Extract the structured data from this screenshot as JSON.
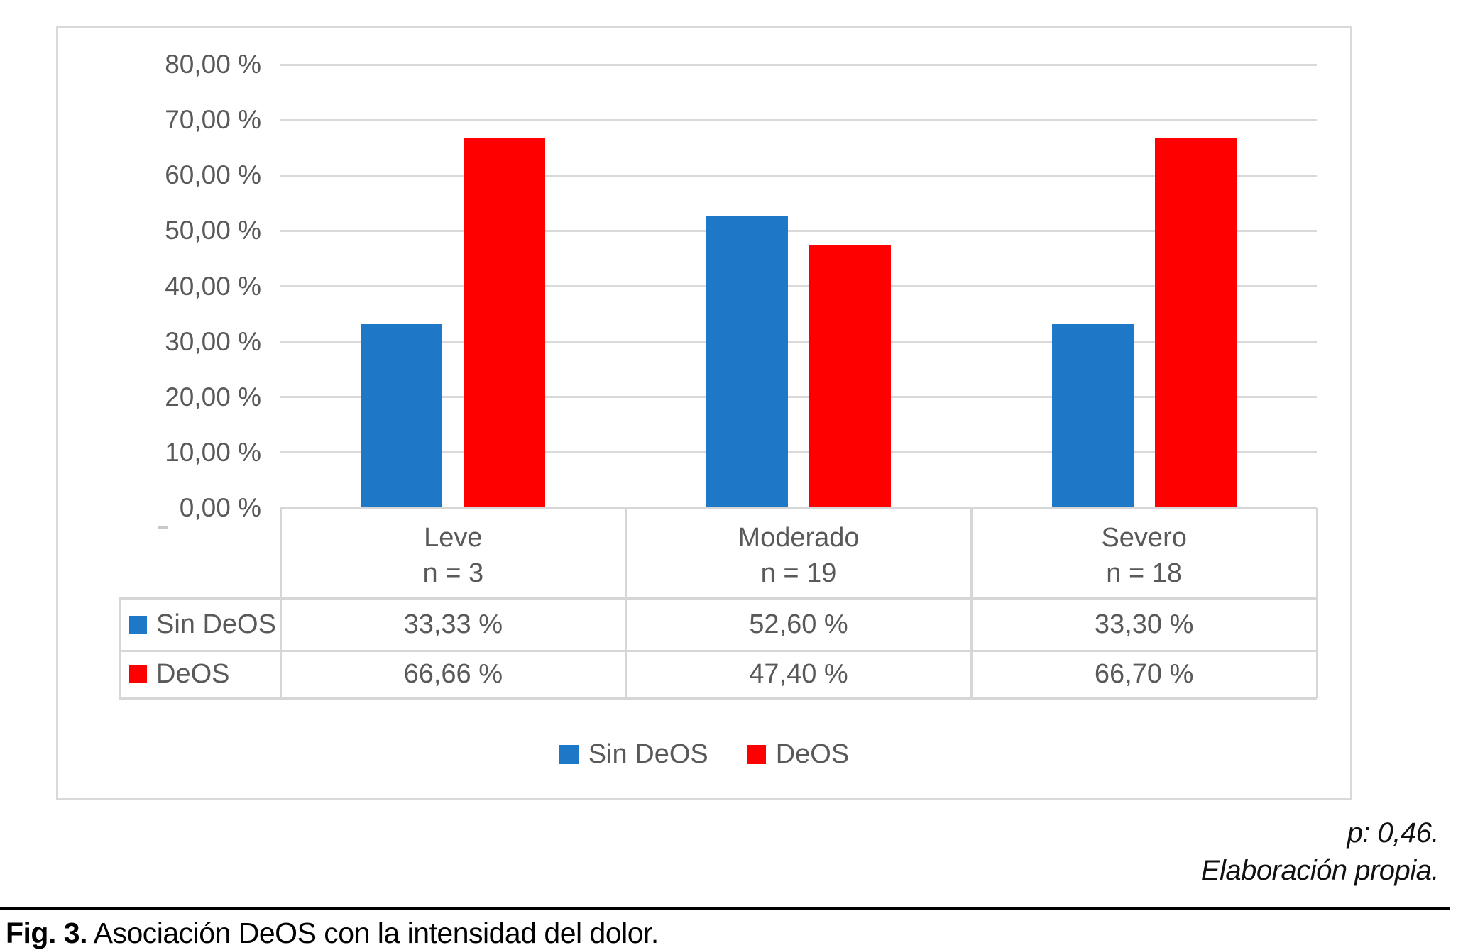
{
  "figure": {
    "p_value_note": "p: 0,46.",
    "source_note": "Elaboración propia.",
    "caption_label": "Fig. 3.",
    "caption_text": " Asociación DeOS con la intensidad del dolor."
  },
  "colors": {
    "sin_deos_blue": "#1F77C8",
    "deos_red": "#FF0000",
    "grid_gray": "#D9D9D9",
    "axis_text_gray": "#595959"
  },
  "chart_data": {
    "type": "bar",
    "title": "",
    "categories": [
      "Leve",
      "Moderado",
      "Severo"
    ],
    "category_sublabels": [
      "n = 3",
      "n = 19",
      "n = 18"
    ],
    "series": [
      {
        "name": "Sin DeOS",
        "color": "#1F77C8",
        "values": [
          33.33,
          52.6,
          33.3
        ],
        "display_values": [
          "33,33 %",
          "52,60 %",
          "33,30 %"
        ]
      },
      {
        "name": "DeOS",
        "color": "#FF0000",
        "values": [
          66.66,
          47.4,
          66.7
        ],
        "display_values": [
          "66,66 %",
          "47,40 %",
          "66,70 %"
        ]
      }
    ],
    "ylabel": "",
    "xlabel": "",
    "ylim": [
      0,
      80
    ],
    "ytick_step": 10,
    "ytick_labels": [
      "0,00 %",
      "10,00 %",
      "20,00 %",
      "30,00 %",
      "40,00 %",
      "50,00 %",
      "60,00 %",
      "70,00 %",
      "80,00 %"
    ],
    "grid": true,
    "legend_position": "bottom-center",
    "data_table_shown": true
  }
}
